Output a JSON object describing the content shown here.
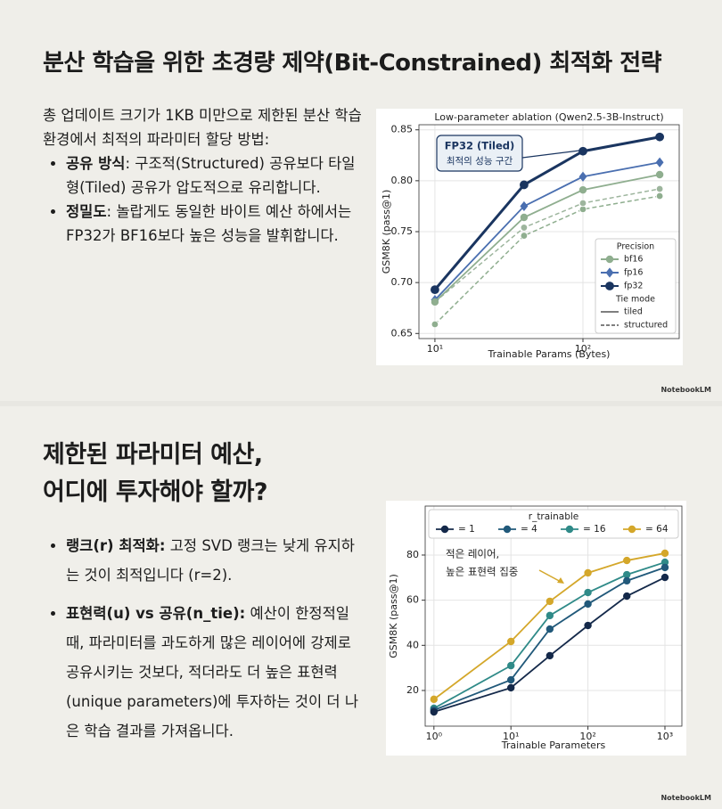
{
  "slides": [
    {
      "title": "분산 학습을 위한 초경량 제약(Bit-Constrained) 최적화 전략",
      "intro": "총 업데이트 크기가 1KB 미만으로 제한된 분산 학습 환경에서 최적의 파라미터 할당 방법:",
      "bullets": [
        {
          "label": "공유 방식",
          "text": ": 구조적(Structured) 공유보다 타일형(Tiled) 공유가 압도적으로 유리합니다."
        },
        {
          "label": "정밀도",
          "text": ": 놀랍게도 동일한 바이트 예산 하에서는 FP32가 BF16보다 높은 성능을 발휘합니다."
        }
      ],
      "badge": "NotebookLM"
    },
    {
      "title_lines": [
        "제한된 파라미터 예산,",
        "어디에 투자해야 할까?"
      ],
      "bullets": [
        {
          "label": "랭크(r) 최적화:",
          "text": " 고정 SVD 랭크는 낮게 유지하는 것이 최적입니다 (r=2)."
        },
        {
          "label": "표현력(u) vs 공유(n_tie):",
          "text": " 예산이 한정적일 때, 파라미터를 과도하게 많은 레이어에 강제로 공유시키는 것보다, 적더라도 더 높은 표현력(unique parameters)에 투자하는 것이 더 나은 학습 결과를 가져옵니다."
        }
      ],
      "badge": "NotebookLM"
    }
  ],
  "chart_data": [
    {
      "type": "line",
      "title": "Low-parameter ablation (Qwen2.5-3B-Instruct)",
      "x_label": "Trainable Params (Bytes)",
      "y_label": "GSM8K (pass@1)",
      "xscale": "log",
      "x": [
        10,
        40,
        100,
        330
      ],
      "xlim": [
        7.8,
        447
      ],
      "xticks": [
        {
          "value": 10,
          "label": "10¹"
        },
        {
          "value": 100,
          "label": "10²"
        }
      ],
      "ylim": [
        0.645,
        0.855
      ],
      "yticks": [
        0.65,
        {
          "value": 0.7,
          "label": "0.70"
        },
        0.75,
        {
          "value": 0.8,
          "label": "0.80"
        },
        0.85
      ],
      "grid": true,
      "legend": {
        "title": "Precision",
        "mode_title": "Tie mode",
        "modes": [
          "tiled",
          "structured"
        ],
        "corner": "lower right"
      },
      "series": [
        {
          "name": "bf16",
          "color": "#8fae8f",
          "marker": "circle",
          "dashed": false,
          "values": [
            0.681,
            0.764,
            0.791,
            0.806
          ]
        },
        {
          "name": "fp16",
          "color": "#4a6fb0",
          "marker": "diamond",
          "dashed": false,
          "values": [
            0.683,
            0.775,
            0.804,
            0.818
          ]
        },
        {
          "name": "fp32",
          "color": "#1a3560",
          "marker": "circle",
          "dashed": false,
          "values": [
            0.693,
            0.796,
            0.829,
            0.843
          ]
        },
        {
          "color": "#9db59d",
          "marker": "circle",
          "dashed": true,
          "values": [
            0.681,
            0.754,
            0.778,
            0.792
          ]
        },
        {
          "color": "#8fae8f",
          "marker": "circle",
          "dashed": true,
          "values": [
            0.659,
            0.746,
            0.772,
            0.785
          ]
        }
      ],
      "annotation": {
        "title": "FP32 (Tiled)",
        "text": "최적의 성능 구간"
      }
    },
    {
      "type": "line",
      "x_label": "Trainable Parameters",
      "y_label": "GSM8K (pass@1)",
      "xscale": "log",
      "x": [
        1,
        10,
        32,
        100,
        320,
        1000
      ],
      "xlim": [
        0.77,
        1660
      ],
      "xticks": [
        {
          "value": 1,
          "label": "10⁰"
        },
        {
          "value": 10,
          "label": "10¹"
        },
        {
          "value": 100,
          "label": "10²"
        },
        {
          "value": 1000,
          "label": "10³"
        }
      ],
      "ylim": [
        4.2,
        101.7
      ],
      "yticks": [
        20,
        40,
        60,
        80
      ],
      "grid": true,
      "legend": {
        "title": "r_trainable",
        "corner": "upper center"
      },
      "series": [
        {
          "name": "= 1",
          "color": "#14294a",
          "marker": "circle",
          "values": [
            10.5,
            21.2,
            35.4,
            48.8,
            61.8,
            70.1
          ]
        },
        {
          "name": "= 4",
          "color": "#21597a",
          "marker": "circle",
          "values": [
            11.3,
            24.7,
            47.2,
            58.3,
            68.6,
            74.5
          ]
        },
        {
          "name": "= 16",
          "color": "#2f8a88",
          "marker": "circle",
          "values": [
            12.1,
            31,
            53.2,
            63.4,
            71.3,
            76.8
          ]
        },
        {
          "name": "= 64",
          "color": "#d4a72a",
          "marker": "circle",
          "values": [
            16.1,
            41.7,
            59.5,
            72.1,
            77.6,
            80.8
          ]
        }
      ],
      "annotation": {
        "lines": [
          "적은 레이어,",
          "높은 표현력 집중"
        ]
      }
    }
  ]
}
